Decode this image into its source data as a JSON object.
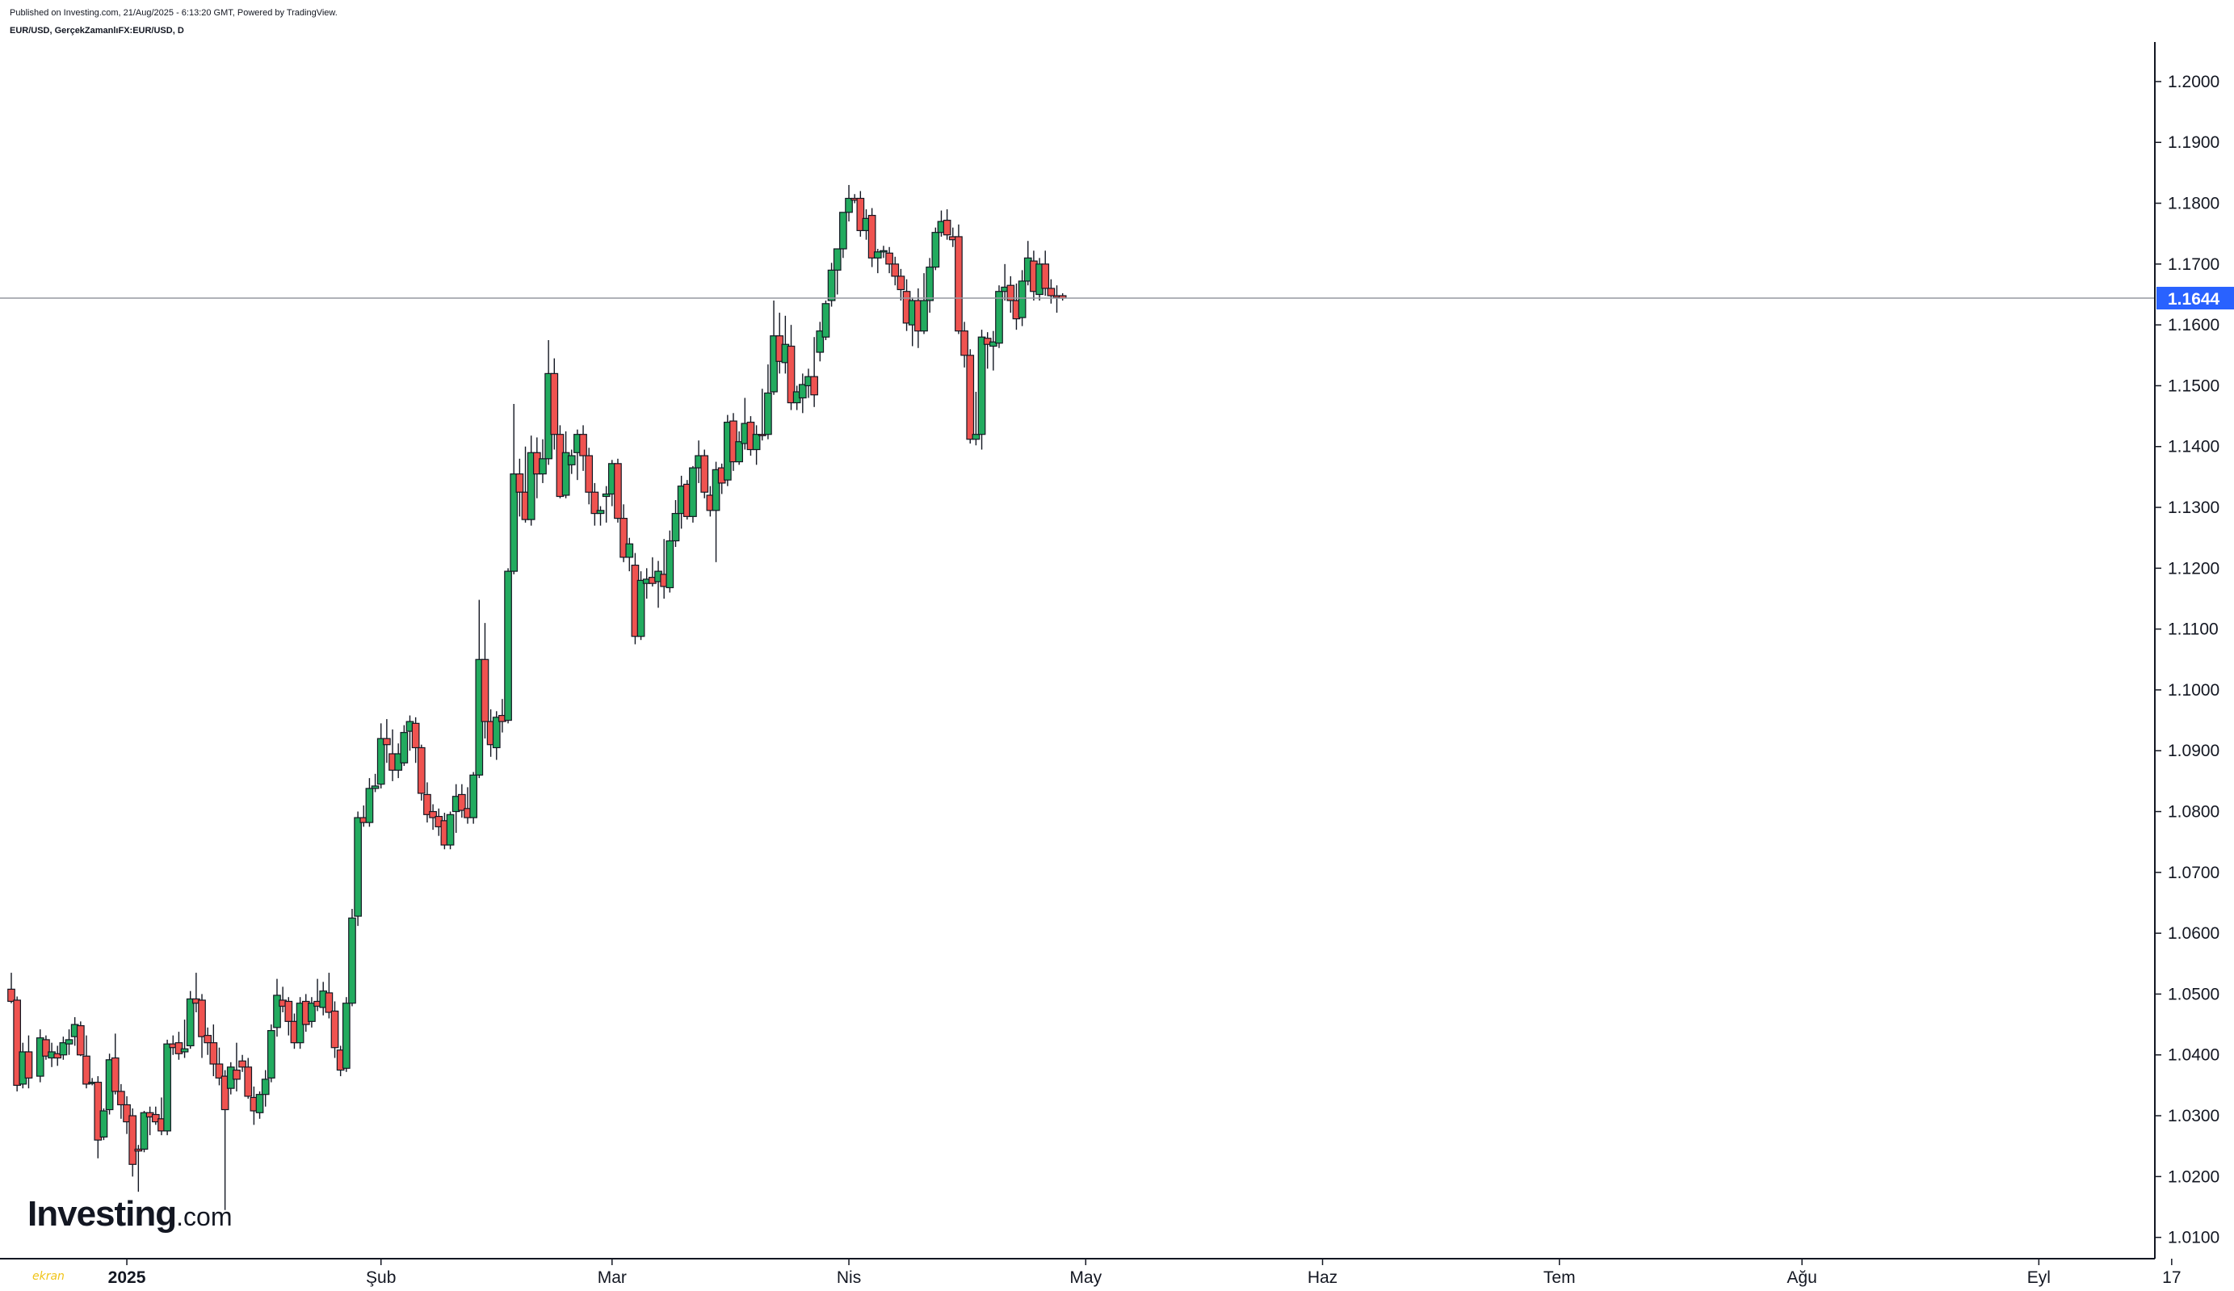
{
  "header": {
    "published": "Published on Investing.com, 21/Aug/2025 - 6:13:20 GMT, Powered by TradingView.",
    "symbol": "EUR/USD, GerçekZamanlıFX:EUR/USD, D"
  },
  "logo": {
    "text": "Investing",
    "suffix": ".com"
  },
  "watermark": "ekran",
  "colors": {
    "up": "#26a69a",
    "up_fill": "#22ab5f",
    "down": "#ef5350",
    "wick": "#131722",
    "price_line": "#9598a1",
    "price_tag": "#2962ff"
  },
  "current_price": {
    "value": 1.1644,
    "label": "1.1644"
  },
  "chart_data": {
    "type": "candlestick",
    "title": "",
    "ylim": [
      1.0065,
      1.2065
    ],
    "y_ticks": [
      "1.2000",
      "1.1900",
      "1.1800",
      "1.1700",
      "1.1600",
      "1.1500",
      "1.1400",
      "1.1300",
      "1.1200",
      "1.1100",
      "1.1000",
      "1.0900",
      "1.0800",
      "1.0700",
      "1.0600",
      "1.0500",
      "1.0400",
      "1.0300",
      "1.0200",
      "1.0100"
    ],
    "x_ticks": [
      {
        "label": "2025",
        "index": 20,
        "bold": true
      },
      {
        "label": "Şub",
        "index": 64,
        "bold": false
      },
      {
        "label": "Mar",
        "index": 104,
        "bold": false
      },
      {
        "label": "Nis",
        "index": 145,
        "bold": false
      },
      {
        "label": "May",
        "index": 186,
        "bold": false
      },
      {
        "label": "Haz",
        "index": 227,
        "bold": false
      },
      {
        "label": "Tem",
        "index": 268,
        "bold": false
      },
      {
        "label": "Ağu",
        "index": 310,
        "bold": false
      },
      {
        "label": "Eyl",
        "index": 351,
        "bold": false
      },
      {
        "label": "17",
        "index": 374,
        "bold": false
      }
    ],
    "xlim": [
      -1,
      374.5
    ],
    "candles": [
      [
        0,
        1.0508,
        1.0535,
        1.0485,
        1.0488
      ],
      [
        1,
        1.049,
        1.0496,
        1.034,
        1.035
      ],
      [
        2,
        1.0352,
        1.042,
        1.0345,
        1.0405
      ],
      [
        3,
        1.0405,
        1.0432,
        1.0345,
        1.0362
      ],
      [
        5,
        1.0365,
        1.0442,
        1.0355,
        1.0428
      ],
      [
        6,
        1.0425,
        1.0432,
        1.0392,
        1.0398
      ],
      [
        7,
        1.0395,
        1.042,
        1.038,
        1.0405
      ],
      [
        8,
        1.0402,
        1.0415,
        1.0382,
        1.0395
      ],
      [
        9,
        1.04,
        1.043,
        1.0392,
        1.042
      ],
      [
        10,
        1.0418,
        1.0442,
        1.04,
        1.0425
      ],
      [
        11,
        1.043,
        1.0462,
        1.0415,
        1.045
      ],
      [
        12,
        1.0448,
        1.0455,
        1.0398,
        1.04
      ],
      [
        13,
        1.0398,
        1.0432,
        1.0345,
        1.0352
      ],
      [
        14,
        1.0355,
        1.0362,
        1.035,
        1.0355
      ],
      [
        15,
        1.0355,
        1.0365,
        1.023,
        1.026
      ],
      [
        16,
        1.0265,
        1.0312,
        1.026,
        1.0308
      ],
      [
        17,
        1.031,
        1.0402,
        1.0302,
        1.0392
      ],
      [
        18,
        1.0395,
        1.0435,
        1.0335,
        1.034
      ],
      [
        19,
        1.034,
        1.0352,
        1.0295,
        1.0318
      ],
      [
        20,
        1.0318,
        1.0332,
        1.027,
        1.029
      ],
      [
        21,
        1.03,
        1.0312,
        1.02,
        1.022
      ],
      [
        22,
        1.0245,
        1.0252,
        1.0175,
        1.0242
      ],
      [
        23,
        1.0245,
        1.0308,
        1.024,
        1.0305
      ],
      [
        24,
        1.0305,
        1.0315,
        1.0268,
        1.0298
      ],
      [
        25,
        1.0302,
        1.0315,
        1.0285,
        1.029
      ],
      [
        26,
        1.0295,
        1.033,
        1.0268,
        1.0275
      ],
      [
        27,
        1.0275,
        1.0425,
        1.0268,
        1.0418
      ],
      [
        28,
        1.0418,
        1.0432,
        1.04,
        1.0412
      ],
      [
        29,
        1.042,
        1.0438,
        1.0392,
        1.0402
      ],
      [
        30,
        1.0405,
        1.0458,
        1.0395,
        1.041
      ],
      [
        31,
        1.0415,
        1.0505,
        1.041,
        1.0492
      ],
      [
        32,
        1.0492,
        1.0535,
        1.047,
        1.0485
      ],
      [
        33,
        1.049,
        1.05,
        1.0395,
        1.043
      ],
      [
        34,
        1.0432,
        1.0445,
        1.04,
        1.042
      ],
      [
        35,
        1.042,
        1.045,
        1.0365,
        1.0385
      ],
      [
        36,
        1.0385,
        1.0412,
        1.035,
        1.0362
      ],
      [
        37,
        1.0365,
        1.0375,
        1.0145,
        1.031
      ],
      [
        38,
        1.0345,
        1.0388,
        1.0335,
        1.038
      ],
      [
        39,
        1.0375,
        1.042,
        1.034,
        1.036
      ],
      [
        40,
        1.039,
        1.04,
        1.0372,
        1.038
      ],
      [
        41,
        1.038,
        1.0395,
        1.0328,
        1.0332
      ],
      [
        42,
        1.033,
        1.0348,
        1.0285,
        1.0308
      ],
      [
        43,
        1.0305,
        1.034,
        1.0295,
        1.0335
      ],
      [
        44,
        1.0335,
        1.0375,
        1.0315,
        1.036
      ],
      [
        45,
        1.0362,
        1.045,
        1.0355,
        1.044
      ],
      [
        46,
        1.0445,
        1.0525,
        1.043,
        1.0498
      ],
      [
        47,
        1.049,
        1.0512,
        1.047,
        1.048
      ],
      [
        48,
        1.0488,
        1.0495,
        1.0432,
        1.0455
      ],
      [
        49,
        1.0455,
        1.0468,
        1.041,
        1.042
      ],
      [
        50,
        1.042,
        1.0495,
        1.041,
        1.0485
      ],
      [
        51,
        1.0488,
        1.05,
        1.0438,
        1.045
      ],
      [
        52,
        1.0455,
        1.0495,
        1.0445,
        1.0485
      ],
      [
        53,
        1.0488,
        1.0525,
        1.0472,
        1.048
      ],
      [
        54,
        1.0478,
        1.052,
        1.0465,
        1.0505
      ],
      [
        55,
        1.0502,
        1.0535,
        1.046,
        1.047
      ],
      [
        56,
        1.0472,
        1.0488,
        1.0395,
        1.0412
      ],
      [
        57,
        1.0408,
        1.0415,
        1.0365,
        1.0375
      ],
      [
        58,
        1.0378,
        1.0495,
        1.0372,
        1.0485
      ],
      [
        59,
        1.0485,
        1.064,
        1.048,
        1.0625
      ],
      [
        60,
        1.0628,
        1.08,
        1.0612,
        1.079
      ],
      [
        61,
        1.079,
        1.081,
        1.0775,
        1.0782
      ],
      [
        62,
        1.0782,
        1.0855,
        1.0775,
        1.0838
      ],
      [
        63,
        1.0838,
        1.0862,
        1.0832,
        1.0842
      ],
      [
        64,
        1.0845,
        1.0945,
        1.0838,
        1.092
      ],
      [
        65,
        1.092,
        1.0952,
        1.088,
        1.091
      ],
      [
        66,
        1.0895,
        1.0935,
        1.085,
        1.0868
      ],
      [
        67,
        1.0868,
        1.0912,
        1.0855,
        1.0895
      ],
      [
        68,
        1.088,
        1.0942,
        1.0875,
        1.093
      ],
      [
        69,
        1.0932,
        1.0958,
        1.09,
        1.0948
      ],
      [
        70,
        1.0945,
        1.0955,
        1.088,
        1.0905
      ],
      [
        71,
        1.0905,
        1.091,
        1.0818,
        1.083
      ],
      [
        72,
        1.0828,
        1.0848,
        1.0782,
        1.0795
      ],
      [
        73,
        1.08,
        1.0812,
        1.077,
        1.079
      ],
      [
        74,
        1.0792,
        1.0805,
        1.076,
        1.0775
      ],
      [
        75,
        1.0785,
        1.0798,
        1.0738,
        1.0745
      ],
      [
        76,
        1.0745,
        1.08,
        1.0738,
        1.0795
      ],
      [
        77,
        1.08,
        1.0845,
        1.0765,
        1.0825
      ],
      [
        78,
        1.0828,
        1.0845,
        1.079,
        1.0802
      ],
      [
        79,
        1.0805,
        1.084,
        1.078,
        1.079
      ],
      [
        80,
        1.079,
        1.0865,
        1.078,
        1.086
      ],
      [
        81,
        1.086,
        1.1148,
        1.0855,
        1.105
      ],
      [
        82,
        1.105,
        1.111,
        1.092,
        1.0948
      ],
      [
        83,
        1.0948,
        1.0968,
        1.089,
        1.091
      ],
      [
        84,
        1.0905,
        1.0965,
        1.0885,
        1.0955
      ],
      [
        85,
        1.0958,
        1.0985,
        1.093,
        1.0948
      ],
      [
        86,
        1.095,
        1.12,
        1.0945,
        1.1195
      ],
      [
        87,
        1.1195,
        1.147,
        1.119,
        1.1355
      ],
      [
        88,
        1.1355,
        1.138,
        1.1285,
        1.1325
      ],
      [
        89,
        1.1325,
        1.14,
        1.1275,
        1.128
      ],
      [
        90,
        1.128,
        1.1418,
        1.127,
        1.139
      ],
      [
        91,
        1.139,
        1.1415,
        1.1315,
        1.1355
      ],
      [
        92,
        1.1355,
        1.1412,
        1.134,
        1.138
      ],
      [
        93,
        1.138,
        1.1575,
        1.137,
        1.152
      ],
      [
        94,
        1.152,
        1.1545,
        1.1395,
        1.142
      ],
      [
        95,
        1.142,
        1.1435,
        1.1315,
        1.1318
      ],
      [
        96,
        1.132,
        1.1425,
        1.1315,
        1.139
      ],
      [
        97,
        1.137,
        1.1395,
        1.1355,
        1.1385
      ],
      [
        98,
        1.139,
        1.1428,
        1.1345,
        1.142
      ],
      [
        99,
        1.142,
        1.1435,
        1.136,
        1.1385
      ],
      [
        100,
        1.1385,
        1.1398,
        1.1305,
        1.1325
      ],
      [
        101,
        1.1325,
        1.134,
        1.127,
        1.129
      ],
      [
        102,
        1.129,
        1.1302,
        1.127,
        1.1295
      ],
      [
        103,
        1.1318,
        1.1335,
        1.1275,
        1.1322
      ],
      [
        104,
        1.1322,
        1.1378,
        1.1302,
        1.1372
      ],
      [
        105,
        1.1372,
        1.138,
        1.1275,
        1.1282
      ],
      [
        106,
        1.1282,
        1.1305,
        1.121,
        1.1218
      ],
      [
        107,
        1.1218,
        1.125,
        1.1195,
        1.124
      ],
      [
        108,
        1.1205,
        1.1225,
        1.1075,
        1.1088
      ],
      [
        109,
        1.1088,
        1.1195,
        1.1082,
        1.118
      ],
      [
        110,
        1.1175,
        1.12,
        1.115,
        1.1182
      ],
      [
        111,
        1.1185,
        1.1218,
        1.117,
        1.1175
      ],
      [
        112,
        1.1178,
        1.1212,
        1.1135,
        1.1195
      ],
      [
        113,
        1.119,
        1.1248,
        1.115,
        1.117
      ],
      [
        114,
        1.1168,
        1.1262,
        1.116,
        1.1245
      ],
      [
        115,
        1.1245,
        1.1312,
        1.1235,
        1.129
      ],
      [
        116,
        1.129,
        1.1352,
        1.1265,
        1.1335
      ],
      [
        117,
        1.1338,
        1.1345,
        1.128,
        1.1285
      ],
      [
        118,
        1.1285,
        1.1368,
        1.1275,
        1.1365
      ],
      [
        119,
        1.1365,
        1.141,
        1.134,
        1.1385
      ],
      [
        120,
        1.1385,
        1.1395,
        1.1315,
        1.1325
      ],
      [
        121,
        1.132,
        1.1335,
        1.1285,
        1.1295
      ],
      [
        122,
        1.1295,
        1.1375,
        1.121,
        1.1362
      ],
      [
        123,
        1.1365,
        1.1372,
        1.1322,
        1.134
      ],
      [
        124,
        1.1345,
        1.1452,
        1.1335,
        1.144
      ],
      [
        125,
        1.1442,
        1.1455,
        1.136,
        1.1375
      ],
      [
        126,
        1.1375,
        1.1425,
        1.137,
        1.1408
      ],
      [
        127,
        1.1405,
        1.148,
        1.1395,
        1.1438
      ],
      [
        128,
        1.144,
        1.145,
        1.1385,
        1.1395
      ],
      [
        129,
        1.1395,
        1.1435,
        1.137,
        1.142
      ],
      [
        130,
        1.142,
        1.1495,
        1.141,
        1.1418
      ],
      [
        131,
        1.142,
        1.1535,
        1.1412,
        1.1488
      ],
      [
        132,
        1.149,
        1.164,
        1.1485,
        1.1582
      ],
      [
        133,
        1.1582,
        1.162,
        1.152,
        1.154
      ],
      [
        134,
        1.1538,
        1.1615,
        1.152,
        1.1568
      ],
      [
        135,
        1.1565,
        1.16,
        1.146,
        1.1472
      ],
      [
        136,
        1.1472,
        1.15,
        1.146,
        1.149
      ],
      [
        137,
        1.148,
        1.152,
        1.1455,
        1.1502
      ],
      [
        138,
        1.15,
        1.1528,
        1.148,
        1.1515
      ],
      [
        139,
        1.1515,
        1.158,
        1.1465,
        1.1485
      ],
      [
        140,
        1.1555,
        1.1605,
        1.154,
        1.159
      ],
      [
        141,
        1.158,
        1.164,
        1.1575,
        1.1635
      ],
      [
        142,
        1.164,
        1.1702,
        1.163,
        1.169
      ],
      [
        143,
        1.169,
        1.1722,
        1.165,
        1.1725
      ],
      [
        144,
        1.1725,
        1.1785,
        1.171,
        1.1785
      ],
      [
        145,
        1.1785,
        1.183,
        1.177,
        1.1808
      ],
      [
        146,
        1.1808,
        1.1815,
        1.18,
        1.1805
      ],
      [
        147,
        1.1808,
        1.182,
        1.1745,
        1.1755
      ],
      [
        148,
        1.1755,
        1.179,
        1.174,
        1.1775
      ],
      [
        149,
        1.178,
        1.1792,
        1.1695,
        1.171
      ],
      [
        150,
        1.171,
        1.1725,
        1.1685,
        1.172
      ],
      [
        151,
        1.172,
        1.173,
        1.171,
        1.1722
      ],
      [
        152,
        1.1718,
        1.1728,
        1.1685,
        1.17
      ],
      [
        153,
        1.17,
        1.1712,
        1.1665,
        1.168
      ],
      [
        154,
        1.168,
        1.1692,
        1.164,
        1.1658
      ],
      [
        155,
        1.1655,
        1.1675,
        1.159,
        1.1603
      ],
      [
        156,
        1.16,
        1.1645,
        1.1565,
        1.164
      ],
      [
        157,
        1.164,
        1.166,
        1.1562,
        1.159
      ],
      [
        158,
        1.159,
        1.1685,
        1.1585,
        1.164
      ],
      [
        159,
        1.164,
        1.171,
        1.162,
        1.1695
      ],
      [
        160,
        1.1695,
        1.176,
        1.169,
        1.1752
      ],
      [
        161,
        1.1752,
        1.1788,
        1.1745,
        1.177
      ],
      [
        162,
        1.1772,
        1.179,
        1.174,
        1.1748
      ],
      [
        163,
        1.1745,
        1.176,
        1.1728,
        1.174
      ],
      [
        164,
        1.1745,
        1.1765,
        1.1585,
        1.159
      ],
      [
        165,
        1.159,
        1.1605,
        1.153,
        1.155
      ],
      [
        166,
        1.155,
        1.156,
        1.1405,
        1.1412
      ],
      [
        167,
        1.1412,
        1.149,
        1.1402,
        1.142
      ],
      [
        168,
        1.142,
        1.1592,
        1.1395,
        1.158
      ],
      [
        169,
        1.1578,
        1.1588,
        1.1528,
        1.1568
      ],
      [
        170,
        1.1565,
        1.159,
        1.1525,
        1.1572
      ],
      [
        171,
        1.157,
        1.1665,
        1.1562,
        1.1655
      ],
      [
        172,
        1.1655,
        1.17,
        1.164,
        1.1662
      ],
      [
        173,
        1.1665,
        1.168,
        1.162,
        1.164
      ],
      [
        174,
        1.164,
        1.1668,
        1.1592,
        1.161
      ],
      [
        175,
        1.1612,
        1.169,
        1.1598,
        1.1672
      ],
      [
        176,
        1.1672,
        1.1738,
        1.1665,
        1.171
      ],
      [
        177,
        1.1705,
        1.1722,
        1.164,
        1.1655
      ],
      [
        178,
        1.165,
        1.171,
        1.164,
        1.17
      ],
      [
        179,
        1.17,
        1.1722,
        1.1648,
        1.166
      ],
      [
        180,
        1.166,
        1.1675,
        1.1635,
        1.1648
      ],
      [
        181,
        1.1648,
        1.1665,
        1.162,
        1.1645
      ],
      [
        182,
        1.1648,
        1.1652,
        1.164,
        1.1644
      ]
    ]
  }
}
